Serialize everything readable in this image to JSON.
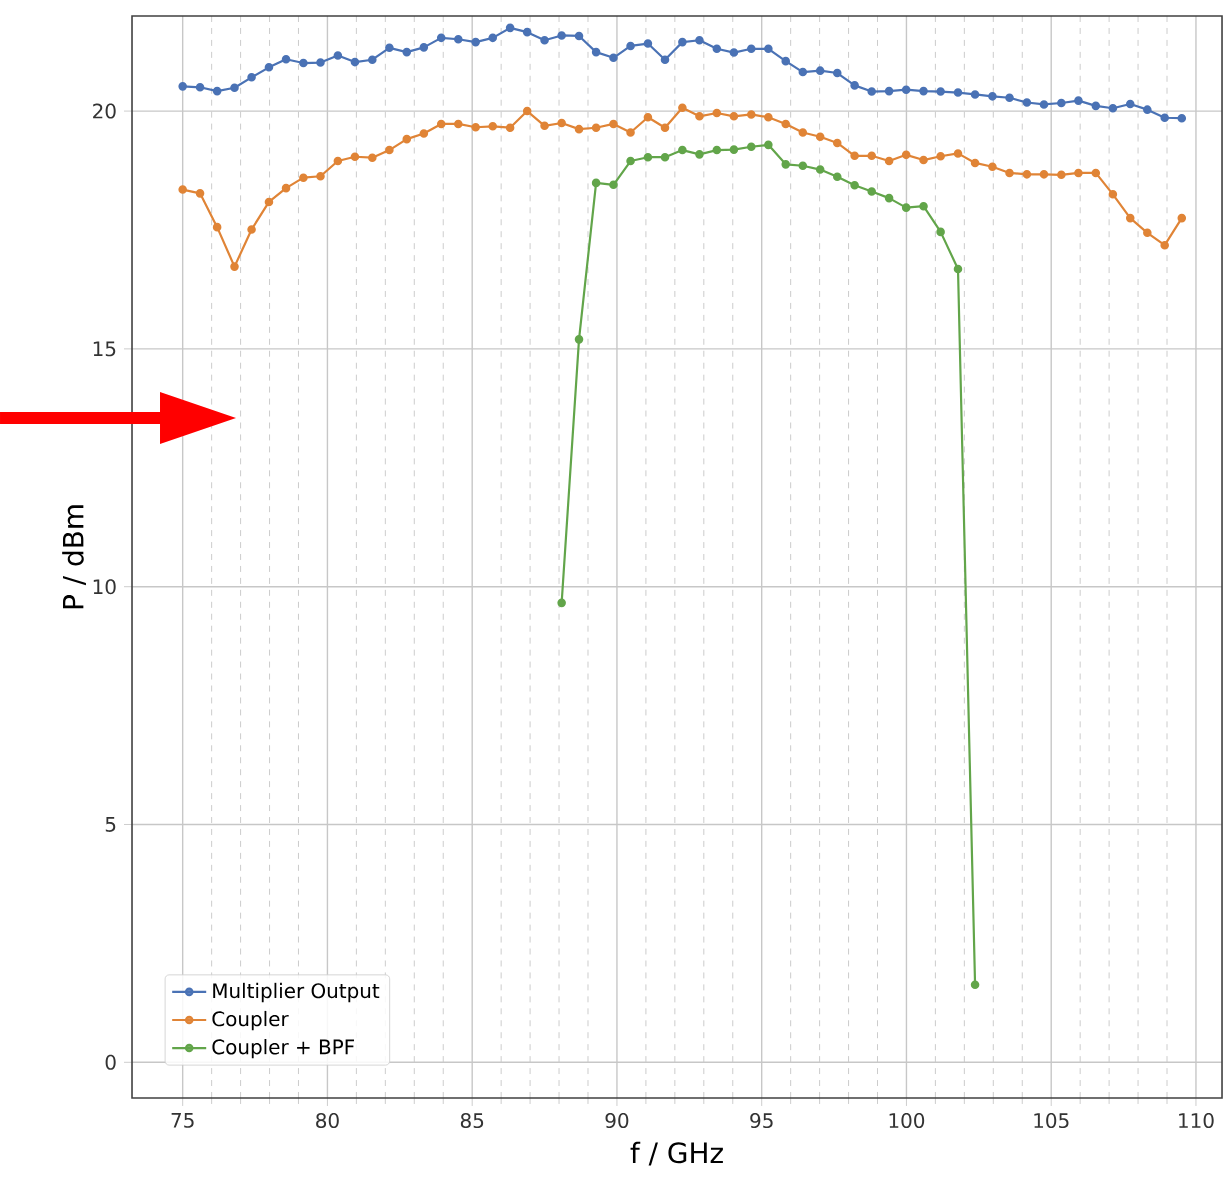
{
  "chart_data": {
    "type": "line",
    "xlabel": "f / GHz",
    "ylabel": "P / dBm",
    "x": [
      75,
      75.6,
      76.19,
      76.79,
      77.38,
      77.98,
      78.57,
      79.17,
      79.76,
      80.36,
      80.95,
      81.55,
      82.14,
      82.74,
      83.33,
      83.93,
      84.52,
      85.12,
      85.71,
      86.31,
      86.9,
      87.5,
      88.09,
      88.69,
      89.28,
      89.88,
      90.47,
      91.07,
      91.66,
      92.26,
      92.85,
      93.45,
      94.04,
      94.64,
      95.23,
      95.83,
      96.42,
      97.02,
      97.61,
      98.21,
      98.8,
      99.4,
      99.99,
      100.59,
      101.18,
      101.78,
      102.37,
      102.97,
      103.56,
      104.16,
      104.75,
      105.35,
      105.94,
      106.54,
      107.13,
      107.73,
      108.32,
      108.92,
      109.51
    ],
    "series": [
      {
        "name": "Multiplier Output",
        "color": "#4a72b5",
        "values": [
          20.52,
          20.5,
          20.42,
          20.49,
          20.71,
          20.92,
          21.09,
          21.01,
          21.02,
          21.17,
          21.03,
          21.08,
          21.33,
          21.24,
          21.34,
          21.54,
          21.51,
          21.45,
          21.54,
          21.75,
          21.66,
          21.49,
          21.59,
          21.58,
          21.24,
          21.12,
          21.37,
          21.42,
          21.08,
          21.45,
          21.49,
          21.31,
          21.23,
          21.31,
          21.31,
          21.05,
          20.82,
          20.85,
          20.8,
          20.54,
          20.41,
          20.42,
          20.45,
          20.42,
          20.41,
          20.39,
          20.35,
          20.31,
          20.28,
          20.18,
          20.14,
          20.17,
          20.22,
          20.11,
          20.06,
          20.15,
          20.03,
          19.86,
          19.85
        ]
      },
      {
        "name": "Coupler",
        "color": "#e08436",
        "values": [
          18.35,
          18.27,
          17.56,
          16.73,
          17.51,
          18.09,
          18.38,
          18.6,
          18.63,
          18.95,
          19.04,
          19.02,
          19.18,
          19.41,
          19.53,
          19.73,
          19.73,
          19.66,
          19.68,
          19.65,
          20.0,
          19.69,
          19.75,
          19.62,
          19.65,
          19.73,
          19.55,
          19.87,
          19.65,
          20.07,
          19.89,
          19.96,
          19.89,
          19.93,
          19.87,
          19.73,
          19.55,
          19.46,
          19.33,
          19.06,
          19.06,
          18.95,
          19.08,
          18.97,
          19.05,
          19.11,
          18.91,
          18.83,
          18.7,
          18.67,
          18.67,
          18.66,
          18.7,
          18.7,
          18.25,
          17.75,
          17.44,
          17.18,
          17.75
        ]
      },
      {
        "name": "Coupler + BPF",
        "color": "#62a54a",
        "values": [
          null,
          null,
          null,
          null,
          null,
          null,
          null,
          null,
          null,
          null,
          null,
          null,
          null,
          null,
          null,
          null,
          null,
          null,
          null,
          null,
          null,
          null,
          9.66,
          15.2,
          18.49,
          18.45,
          18.95,
          19.03,
          19.03,
          19.18,
          19.09,
          19.18,
          19.19,
          19.25,
          19.29,
          18.88,
          18.85,
          18.77,
          18.62,
          18.44,
          18.31,
          18.17,
          17.97,
          18.0,
          17.46,
          16.68,
          1.63,
          null,
          null,
          null,
          null,
          null,
          null,
          null,
          null,
          null,
          null,
          null,
          null
        ]
      }
    ],
    "xlim": [
      73.25,
      110.9
    ],
    "ylim": [
      -0.75,
      22
    ],
    "xticks": [
      75,
      80,
      85,
      90,
      95,
      100,
      105,
      110
    ],
    "yticks": [
      0,
      5,
      10,
      15,
      20
    ],
    "grid": true,
    "legend": "bottom left",
    "marker": "circle",
    "line_style": "solid"
  }
}
